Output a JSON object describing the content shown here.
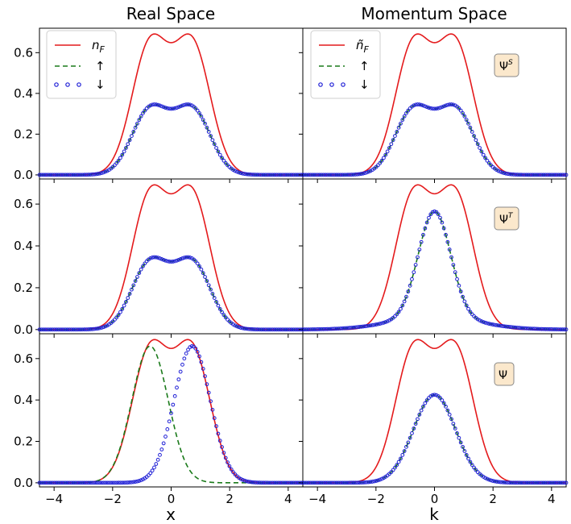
{
  "column_titles": [
    "Real Space",
    "Momentum Space"
  ],
  "x_axis_labels": [
    "x",
    "k"
  ],
  "legend_left": {
    "entries": [
      {
        "label_base": "n",
        "label_sub": "F"
      },
      {
        "label": "↑"
      },
      {
        "label": "↓"
      }
    ]
  },
  "legend_right": {
    "entries": [
      {
        "label_base": "ñ",
        "label_sub": "F"
      },
      {
        "label": "↑"
      },
      {
        "label": "↓"
      }
    ]
  },
  "badges": [
    {
      "base": "Ψ",
      "sup": "S"
    },
    {
      "base": "Ψ",
      "sup": "T"
    },
    {
      "base": "Ψ",
      "sup": ""
    }
  ],
  "colors": {
    "n_F": "#e41a1c",
    "up": "#1a7a1a",
    "down": "#1f1fd6"
  },
  "chart_data": {
    "type": "line",
    "layout": "3x2 grid",
    "xlim": [
      -4.5,
      4.5
    ],
    "ylim": [
      -0.02,
      0.72
    ],
    "x_ticks": [
      -4,
      -2,
      0,
      2,
      4
    ],
    "y_ticks": [
      0.0,
      0.2,
      0.4,
      0.6
    ],
    "x_tick_labels": [
      "−4",
      "−2",
      "0",
      "2",
      "4"
    ],
    "y_tick_labels": [
      "0.0",
      "0.2",
      "0.4",
      "0.6"
    ],
    "series_legend": [
      "n_F",
      "↑",
      "↓"
    ],
    "panels": [
      {
        "row": 1,
        "col": "Real Space",
        "n_F": "double peak, max 0.68 at x=±0.72, 0.565 at x=0",
        "up": "double peak, max 0.34 at x=±0.72, 0.283 at x=0",
        "down": "identical to up"
      },
      {
        "row": 1,
        "col": "Momentum Space",
        "badge": "Ψ^S",
        "n_F": "double peak, max 0.68 at k=±0.72, 0.565 at k=0",
        "up": "double peak, max 0.34 at k=±0.72, 0.283 at k=0",
        "down": "identical to up"
      },
      {
        "row": 2,
        "col": "Real Space",
        "n_F": "double peak, max 0.68 at x=±0.72, 0.565 at x=0",
        "up": "double peak, max 0.34 at x=±0.72, 0.283 at x=0",
        "down": "identical to up"
      },
      {
        "row": 2,
        "col": "Momentum Space",
        "badge": "Ψ^T",
        "n_F": "double peak, max 0.68 at k=±0.72, 0.565 at k=0",
        "up": "single peak, max 0.565 at k=0, broad tails",
        "down": "identical to up"
      },
      {
        "row": 3,
        "col": "Real Space",
        "n_F": "double peak, max 0.68 at x=±0.72, 0.565 at x=0",
        "up": "single peak 0.66 at x=-0.72",
        "down": "single peak 0.66 at x=+0.72"
      },
      {
        "row": 3,
        "col": "Momentum Space",
        "badge": "Ψ",
        "n_F": "double peak, max 0.68 at k=±0.72, 0.565 at k=0",
        "up": "single peak 0.425 at k=0",
        "down": "identical to up"
      }
    ]
  }
}
